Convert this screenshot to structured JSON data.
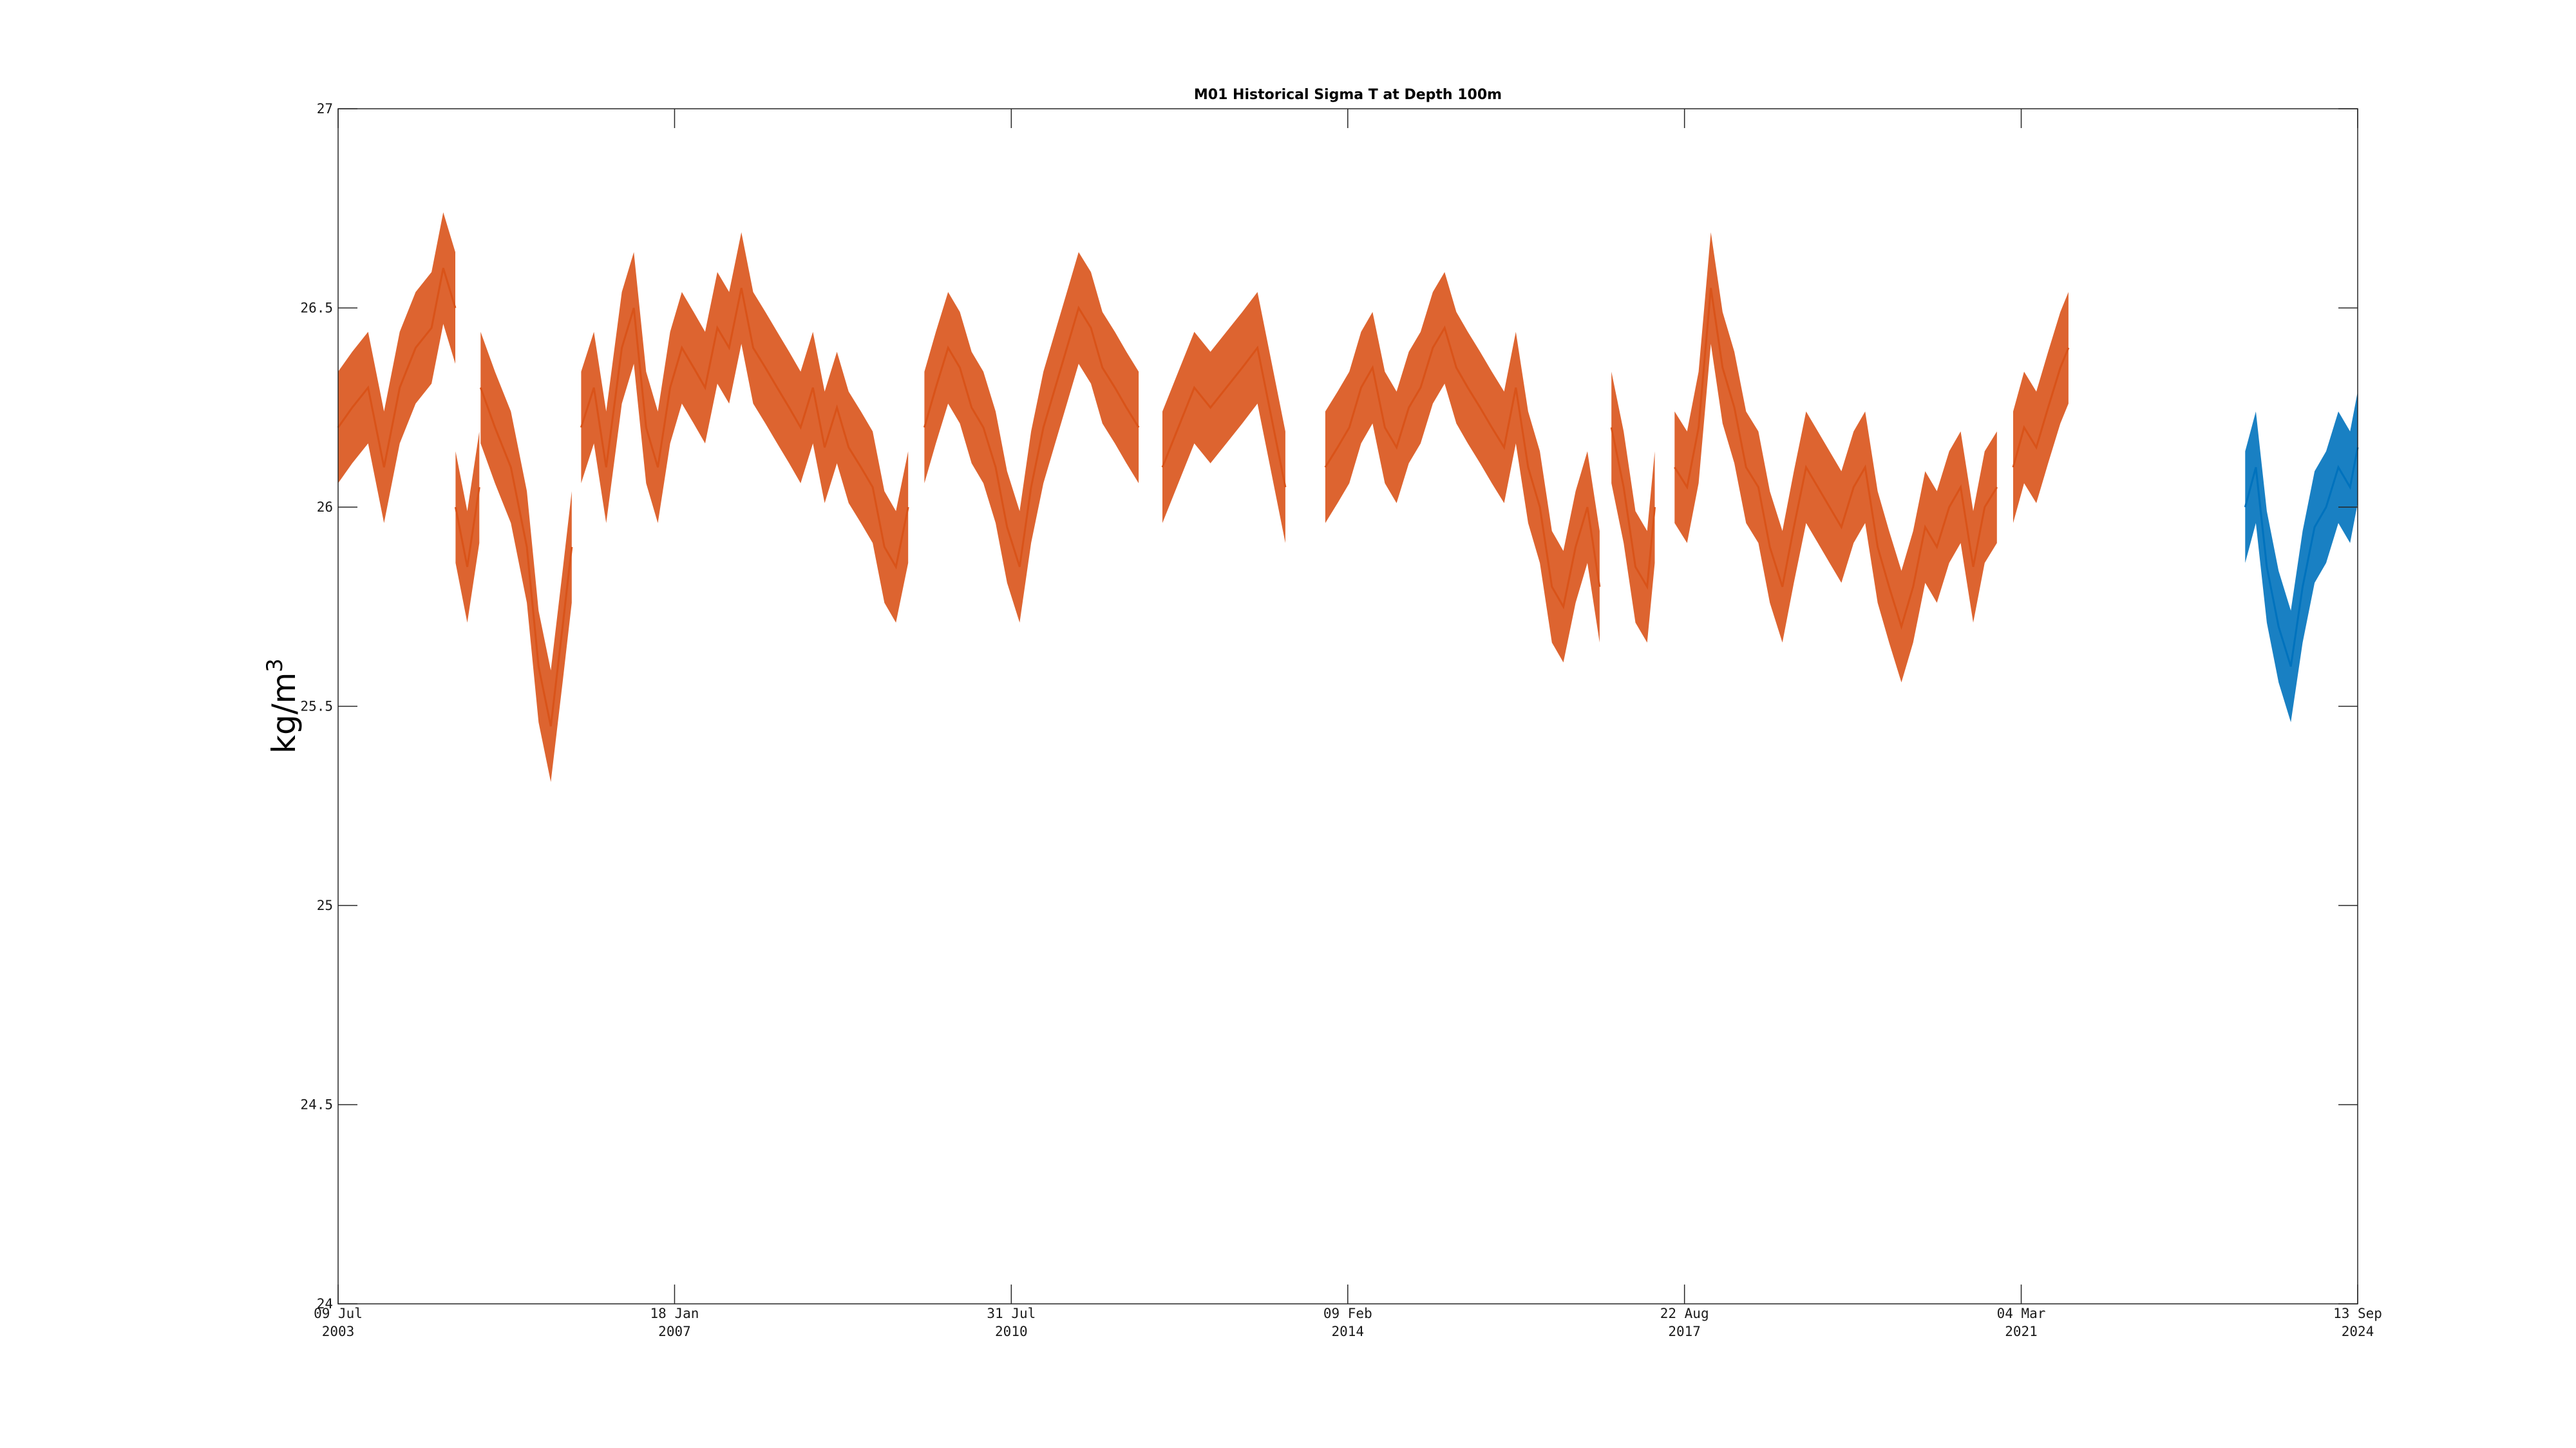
{
  "chart_data": {
    "type": "line",
    "title": "M01 Historical Sigma T at Depth 100m",
    "xlabel": "",
    "ylabel": "kg/m",
    "ylabel_superscript": "3",
    "ylim": [
      24,
      27
    ],
    "xlim": [
      "2003-07-09",
      "2024-09-13"
    ],
    "grid": false,
    "legend": "none",
    "yticks": [
      {
        "value": 24,
        "label": "24"
      },
      {
        "value": 24.5,
        "label": "24.5"
      },
      {
        "value": 25,
        "label": "25"
      },
      {
        "value": 25.5,
        "label": "25.5"
      },
      {
        "value": 26,
        "label": "26"
      },
      {
        "value": 26.5,
        "label": "26.5"
      },
      {
        "value": 27,
        "label": "27"
      }
    ],
    "xticks": [
      {
        "date": "2003-07-09",
        "line1": "09 Jul",
        "line2": "2003"
      },
      {
        "date": "2007-01-18",
        "line1": "18 Jan",
        "line2": "2007"
      },
      {
        "date": "2010-07-31",
        "line1": "31 Jul",
        "line2": "2010"
      },
      {
        "date": "2014-02-09",
        "line1": "09 Feb",
        "line2": "2014"
      },
      {
        "date": "2017-08-22",
        "line1": "22 Aug",
        "line2": "2017"
      },
      {
        "date": "2021-03-04",
        "line1": "04 Mar",
        "line2": "2021"
      },
      {
        "date": "2024-09-13",
        "line1": "13 Sep",
        "line2": "2024"
      }
    ],
    "series": [
      {
        "color": "#D95319",
        "segments": [
          {
            "x": [
              "2003-07-09",
              "2003-09-01",
              "2003-11-01",
              "2004-01-01",
              "2004-03-01",
              "2004-05-01",
              "2004-07-01",
              "2004-08-15",
              "2004-09-30"
            ],
            "y": [
              26.2,
              26.25,
              26.3,
              26.1,
              26.3,
              26.4,
              26.45,
              26.6,
              26.5
            ]
          },
          {
            "x": [
              "2004-10-01",
              "2004-11-15",
              "2004-12-31"
            ],
            "y": [
              26.0,
              25.85,
              26.05
            ]
          },
          {
            "x": [
              "2005-01-05",
              "2005-03-01",
              "2005-05-01",
              "2005-07-01",
              "2005-08-15",
              "2005-10-01",
              "2005-11-15",
              "2005-12-20"
            ],
            "y": [
              26.3,
              26.2,
              26.1,
              25.9,
              25.6,
              25.45,
              25.7,
              25.9
            ]
          },
          {
            "x": [
              "2006-01-25",
              "2006-03-15",
              "2006-05-01",
              "2006-06-30",
              "2006-08-15",
              "2006-10-01",
              "2006-11-15",
              "2007-01-01",
              "2007-02-15",
              "2007-04-01",
              "2007-05-15",
              "2007-07-01",
              "2007-08-15",
              "2007-10-01",
              "2007-11-15",
              "2008-01-01",
              "2008-02-15",
              "2008-04-01",
              "2008-05-15",
              "2008-07-01",
              "2008-08-15",
              "2008-10-01",
              "2008-11-15",
              "2009-01-01",
              "2009-02-15",
              "2009-04-01",
              "2009-05-15",
              "2009-07-01"
            ],
            "y": [
              26.2,
              26.3,
              26.1,
              26.4,
              26.5,
              26.2,
              26.1,
              26.3,
              26.4,
              26.35,
              26.3,
              26.45,
              26.4,
              26.55,
              26.4,
              26.35,
              26.3,
              26.25,
              26.2,
              26.3,
              26.15,
              26.25,
              26.15,
              26.1,
              26.05,
              25.9,
              25.85,
              26.0
            ]
          },
          {
            "x": [
              "2009-09-01",
              "2009-10-15",
              "2009-12-01",
              "2010-01-15",
              "2010-03-01",
              "2010-04-15",
              "2010-06-01",
              "2010-07-15",
              "2010-09-01",
              "2010-10-15",
              "2010-12-01",
              "2011-01-15",
              "2011-03-01",
              "2011-04-15",
              "2011-06-01",
              "2011-07-15",
              "2011-09-01",
              "2011-10-15",
              "2011-12-01"
            ],
            "y": [
              26.2,
              26.3,
              26.4,
              26.35,
              26.25,
              26.2,
              26.1,
              25.95,
              25.85,
              26.05,
              26.2,
              26.3,
              26.4,
              26.5,
              26.45,
              26.35,
              26.3,
              26.25,
              26.2
            ]
          },
          {
            "x": [
              "2012-03-01",
              "2012-05-01",
              "2012-07-01",
              "2012-09-01",
              "2012-11-01",
              "2013-01-01",
              "2013-02-28",
              "2013-04-15",
              "2013-06-15"
            ],
            "y": [
              26.1,
              26.2,
              26.3,
              26.25,
              26.3,
              26.35,
              26.4,
              26.25,
              26.05
            ]
          },
          {
            "x": [
              "2013-11-15",
              "2014-01-01",
              "2014-02-15",
              "2014-04-01",
              "2014-05-15",
              "2014-07-01",
              "2014-08-15",
              "2014-10-01",
              "2014-11-15",
              "2015-01-01",
              "2015-02-15",
              "2015-04-01",
              "2015-05-15",
              "2015-07-01",
              "2015-08-15",
              "2015-10-01",
              "2015-11-15",
              "2016-01-01",
              "2016-02-15",
              "2016-04-01",
              "2016-05-15",
              "2016-07-01",
              "2016-08-15",
              "2016-10-01"
            ],
            "y": [
              26.1,
              26.15,
              26.2,
              26.3,
              26.35,
              26.2,
              26.15,
              26.25,
              26.3,
              26.4,
              26.45,
              26.35,
              26.3,
              26.25,
              26.2,
              26.15,
              26.3,
              26.1,
              26.0,
              25.8,
              25.75,
              25.9,
              26.0,
              25.8
            ]
          },
          {
            "x": [
              "2016-11-15",
              "2017-01-01",
              "2017-02-15",
              "2017-04-01",
              "2017-04-30"
            ],
            "y": [
              26.2,
              26.05,
              25.85,
              25.8,
              26.0
            ]
          },
          {
            "x": [
              "2017-07-15",
              "2017-09-01",
              "2017-10-15",
              "2017-12-01",
              "2018-01-15",
              "2018-03-01",
              "2018-04-15",
              "2018-06-01",
              "2018-07-15",
              "2018-09-01",
              "2018-10-15",
              "2018-12-01",
              "2019-01-15",
              "2019-03-01",
              "2019-04-15",
              "2019-06-01",
              "2019-07-15",
              "2019-09-01",
              "2019-10-15",
              "2019-12-01",
              "2020-01-15",
              "2020-03-01",
              "2020-04-15",
              "2020-06-01",
              "2020-07-15",
              "2020-09-01",
              "2020-10-15",
              "2020-12-01"
            ],
            "y": [
              26.1,
              26.05,
              26.2,
              26.55,
              26.35,
              26.25,
              26.1,
              26.05,
              25.9,
              25.8,
              25.95,
              26.1,
              26.05,
              26.0,
              25.95,
              26.05,
              26.1,
              25.9,
              25.8,
              25.7,
              25.8,
              25.95,
              25.9,
              26.0,
              26.05,
              25.85,
              26.0,
              26.05
            ]
          },
          {
            "x": [
              "2021-02-01",
              "2021-03-15",
              "2021-05-01",
              "2021-06-15",
              "2021-08-01",
              "2021-09-01"
            ],
            "y": [
              26.1,
              26.2,
              26.15,
              26.25,
              26.35,
              26.4
            ]
          }
        ]
      },
      {
        "color": "#0072BD",
        "segments": [
          {
            "x": [
              "2023-07-10",
              "2023-08-20",
              "2023-10-01",
              "2023-11-15",
              "2024-01-01",
              "2024-02-15",
              "2024-04-01",
              "2024-05-15",
              "2024-07-01",
              "2024-08-15",
              "2024-09-13"
            ],
            "y": [
              26.0,
              26.1,
              25.85,
              25.7,
              25.6,
              25.8,
              25.95,
              26.0,
              26.1,
              26.05,
              26.15
            ]
          }
        ]
      }
    ]
  }
}
